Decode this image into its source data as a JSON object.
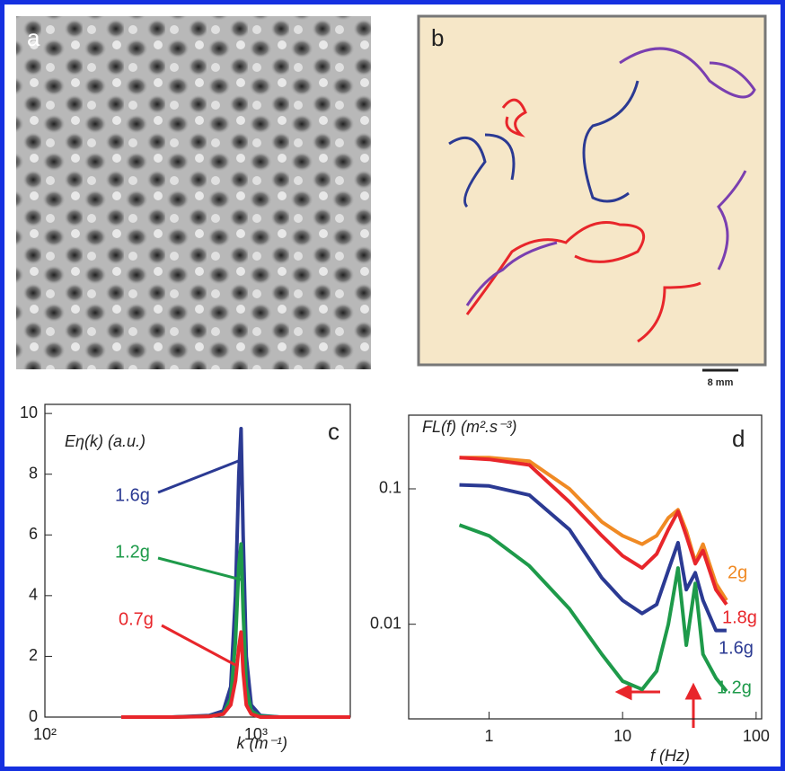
{
  "panels": [
    {
      "label": "a"
    },
    {
      "label": "b",
      "scale_bar": "8 mm"
    }
  ],
  "chart_data": [
    {
      "type": "line",
      "panel": "c",
      "y_label": "Eη(k) (a.u.)",
      "x_label": "k (m⁻¹)",
      "xscale": "log",
      "xlim": [
        100,
        2800
      ],
      "ylim": [
        0,
        10.3
      ],
      "xticks": [
        {
          "value": 100,
          "label": "10²"
        },
        {
          "value": 1000,
          "label": "10³"
        }
      ],
      "yticks": [
        0,
        2,
        4,
        6,
        8,
        10
      ],
      "x": [
        230,
        400,
        600,
        700,
        760,
        800,
        830,
        850,
        870,
        900,
        950,
        1050,
        1300,
        2000,
        2800
      ],
      "series": [
        {
          "name": "1.6g",
          "color": "#2b3a93",
          "values": [
            0,
            0,
            0.05,
            0.2,
            1,
            4,
            8,
            9.5,
            6,
            2,
            0.4,
            0.05,
            0,
            0,
            0
          ]
        },
        {
          "name": "1.2g",
          "color": "#1e9a4a",
          "values": [
            0,
            0,
            0.03,
            0.1,
            0.6,
            2.5,
            5,
            5.7,
            3.5,
            1,
            0.2,
            0.03,
            0,
            0,
            0
          ]
        },
        {
          "name": "0.7g",
          "color": "#e8262b",
          "values": [
            0,
            0,
            0.02,
            0.1,
            0.4,
            1.2,
            2.3,
            2.8,
            1.5,
            0.4,
            0.1,
            0,
            0,
            0,
            0
          ]
        }
      ]
    },
    {
      "type": "line",
      "panel": "d",
      "y_label": "FL(f) (m².s⁻³)",
      "x_label": "f (Hz)",
      "xscale": "log",
      "yscale": "log",
      "xlim": [
        0.25,
        110
      ],
      "ylim": [
        0.002,
        0.35
      ],
      "xticks": [
        1,
        10,
        100
      ],
      "yticks": [
        0.01,
        0.1
      ],
      "x": [
        0.6,
        1,
        2,
        4,
        7,
        10,
        14,
        18,
        22,
        26,
        30,
        35,
        40,
        50,
        60
      ],
      "series": [
        {
          "name": "2g",
          "color": "#f08a24",
          "values": [
            0.17,
            0.17,
            0.16,
            0.1,
            0.057,
            0.045,
            0.039,
            0.045,
            0.061,
            0.07,
            0.049,
            0.029,
            0.039,
            0.02,
            0.015
          ]
        },
        {
          "name": "1.8g",
          "color": "#e8262b",
          "values": [
            0.17,
            0.165,
            0.15,
            0.08,
            0.045,
            0.032,
            0.026,
            0.033,
            0.05,
            0.068,
            0.045,
            0.028,
            0.035,
            0.018,
            0.014
          ]
        },
        {
          "name": "1.6g",
          "color": "#2b3a93",
          "values": [
            0.107,
            0.105,
            0.09,
            0.05,
            0.022,
            0.015,
            0.012,
            0.014,
            0.025,
            0.04,
            0.018,
            0.024,
            0.015,
            0.009,
            0.009
          ]
        },
        {
          "name": "1.2g",
          "color": "#1e9a4a",
          "values": [
            0.054,
            0.045,
            0.027,
            0.013,
            0.006,
            0.0038,
            0.0033,
            0.0045,
            0.01,
            0.026,
            0.007,
            0.02,
            0.006,
            0.004,
            0.0032
          ]
        }
      ]
    }
  ]
}
